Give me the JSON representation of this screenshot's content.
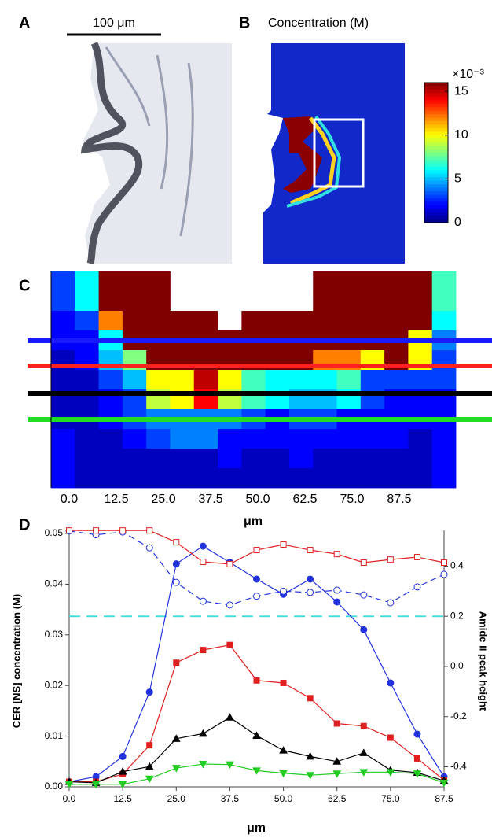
{
  "chart_data": [
    {
      "type": "image",
      "label": "A",
      "scale_bar": "100 μm"
    },
    {
      "type": "image",
      "label": "B",
      "title": "Concentration (M)",
      "colorbar_label": "×10⁻³",
      "clim": [
        0,
        16
      ],
      "cticks": [
        0,
        5,
        10,
        15
      ]
    },
    {
      "type": "heatmap",
      "label": "C",
      "xlabel": "μm",
      "xlim": [
        -4.8,
        102.5
      ],
      "clim": [
        0,
        16
      ],
      "xticks": [
        {
          "value": 0,
          "label": "0.0"
        },
        12.5,
        {
          "value": 25,
          "label": "25.0"
        },
        37.5,
        {
          "value": 50,
          "label": "50.0"
        },
        62.5,
        {
          "value": 75,
          "label": "75.0"
        },
        87.5
      ],
      "values": [
        [
          3,
          6,
          16,
          16,
          16,
          null,
          null,
          null,
          null,
          null,
          null,
          16,
          16,
          16,
          16,
          16,
          7
        ],
        [
          3,
          6,
          16,
          16,
          16,
          null,
          null,
          null,
          null,
          null,
          null,
          16,
          16,
          16,
          16,
          16,
          7
        ],
        [
          2,
          3,
          12,
          16,
          16,
          16,
          16,
          null,
          16,
          16,
          16,
          16,
          16,
          16,
          16,
          16,
          6
        ],
        [
          2,
          2,
          6,
          16,
          16,
          16,
          16,
          16,
          16,
          16,
          16,
          16,
          16,
          16,
          16,
          10,
          4
        ],
        [
          1,
          2,
          5,
          8,
          16,
          16,
          16,
          16,
          16,
          16,
          16,
          12,
          12,
          10,
          16,
          10,
          3
        ],
        [
          1,
          1,
          3,
          5,
          10,
          10,
          15,
          10,
          7,
          6,
          6,
          6,
          7,
          3,
          3,
          3,
          3
        ],
        [
          1,
          1,
          2,
          3,
          9,
          10,
          14,
          9,
          7,
          6,
          5,
          5,
          6,
          3,
          2,
          2,
          2
        ],
        [
          1,
          1,
          2,
          3,
          4,
          4,
          4,
          4,
          3,
          2,
          3,
          3,
          2,
          2,
          2,
          2,
          2
        ],
        [
          2,
          1,
          1,
          2,
          3,
          4,
          4,
          2,
          2,
          2,
          2,
          2,
          2,
          2,
          2,
          1,
          2
        ],
        [
          2,
          1,
          1,
          1,
          1,
          1,
          1,
          2,
          1,
          1,
          2,
          1,
          1,
          1,
          1,
          1,
          2
        ],
        [
          2,
          1,
          1,
          1,
          1,
          1,
          1,
          1,
          1,
          1,
          1,
          1,
          1,
          1,
          1,
          1,
          2
        ]
      ]
    },
    {
      "type": "line",
      "label": "D",
      "xlabel": "μm",
      "ylabel": "CER [NS] concentration (M)",
      "y2label": "Amide II peak height",
      "x": [
        0,
        6.25,
        12.5,
        18.75,
        25,
        31.25,
        37.5,
        43.75,
        50,
        56.25,
        62.5,
        68.75,
        75,
        81.25,
        87.5
      ],
      "xlim": [
        0,
        87.5
      ],
      "xticks": [
        {
          "value": 0,
          "label": "0.0"
        },
        12.5,
        {
          "value": 25,
          "label": "25.0"
        },
        37.5,
        {
          "value": 50,
          "label": "50.0"
        },
        62.5,
        {
          "value": 75,
          "label": "75.0"
        },
        87.5
      ],
      "ylim": [
        0,
        0.05
      ],
      "yticks": [
        {
          "value": 0,
          "label": "0.00"
        },
        0.01,
        0.02,
        0.03,
        0.04,
        0.05
      ],
      "y2lim": [
        -0.48,
        0.53
      ],
      "y2ticks": [
        -0.4,
        -0.2,
        {
          "value": 0,
          "label": "0.0"
        },
        0.2,
        0.4
      ],
      "reference_line": {
        "value": 0.2,
        "axis": "y2",
        "color": "#44dddd"
      },
      "series": [
        {
          "color": "#2233dd",
          "marker": "circle",
          "values": [
            0.001,
            0.002,
            0.006,
            0.0187,
            0.044,
            0.0475,
            0.0443,
            0.041,
            0.038,
            0.041,
            0.0365,
            0.031,
            0.0205,
            0.0104,
            0.002
          ]
        },
        {
          "color": "#e02020",
          "marker": "square",
          "values": [
            0.001,
            0.001,
            0.0025,
            0.0082,
            0.0245,
            0.027,
            0.028,
            0.021,
            0.0205,
            0.0175,
            0.0125,
            0.012,
            0.0097,
            0.0056,
            0.0013
          ]
        },
        {
          "color": "#000000",
          "marker": "triangle-up",
          "values": [
            0.001,
            0.0008,
            0.003,
            0.004,
            0.0095,
            0.0105,
            0.0137,
            0.0101,
            0.0072,
            0.006,
            0.005,
            0.0067,
            0.0033,
            0.0028,
            0.0012
          ]
        },
        {
          "color": "#22cc22",
          "marker": "triangle-down",
          "values": [
            0.0005,
            0.0005,
            0.0005,
            0.0016,
            0.0037,
            0.0045,
            0.0044,
            0.0032,
            0.0027,
            0.0023,
            0.0026,
            0.0029,
            0.0029,
            0.0026,
            0.0008
          ]
        },
        {
          "color": "#2233dd",
          "marker": "open-circle",
          "dashed": true,
          "axis": "y2",
          "values": [
            0.54,
            0.525,
            0.536,
            0.473,
            0.335,
            0.26,
            0.245,
            0.28,
            0.3,
            0.295,
            0.304,
            0.285,
            0.254,
            0.317,
            0.367
          ]
        },
        {
          "color": "#e02020",
          "marker": "open-square",
          "axis": "y2",
          "values": [
            0.542,
            0.542,
            0.542,
            0.542,
            0.495,
            0.417,
            0.408,
            0.464,
            0.486,
            0.464,
            0.448,
            0.414,
            0.426,
            0.436,
            0.414
          ]
        }
      ]
    }
  ]
}
